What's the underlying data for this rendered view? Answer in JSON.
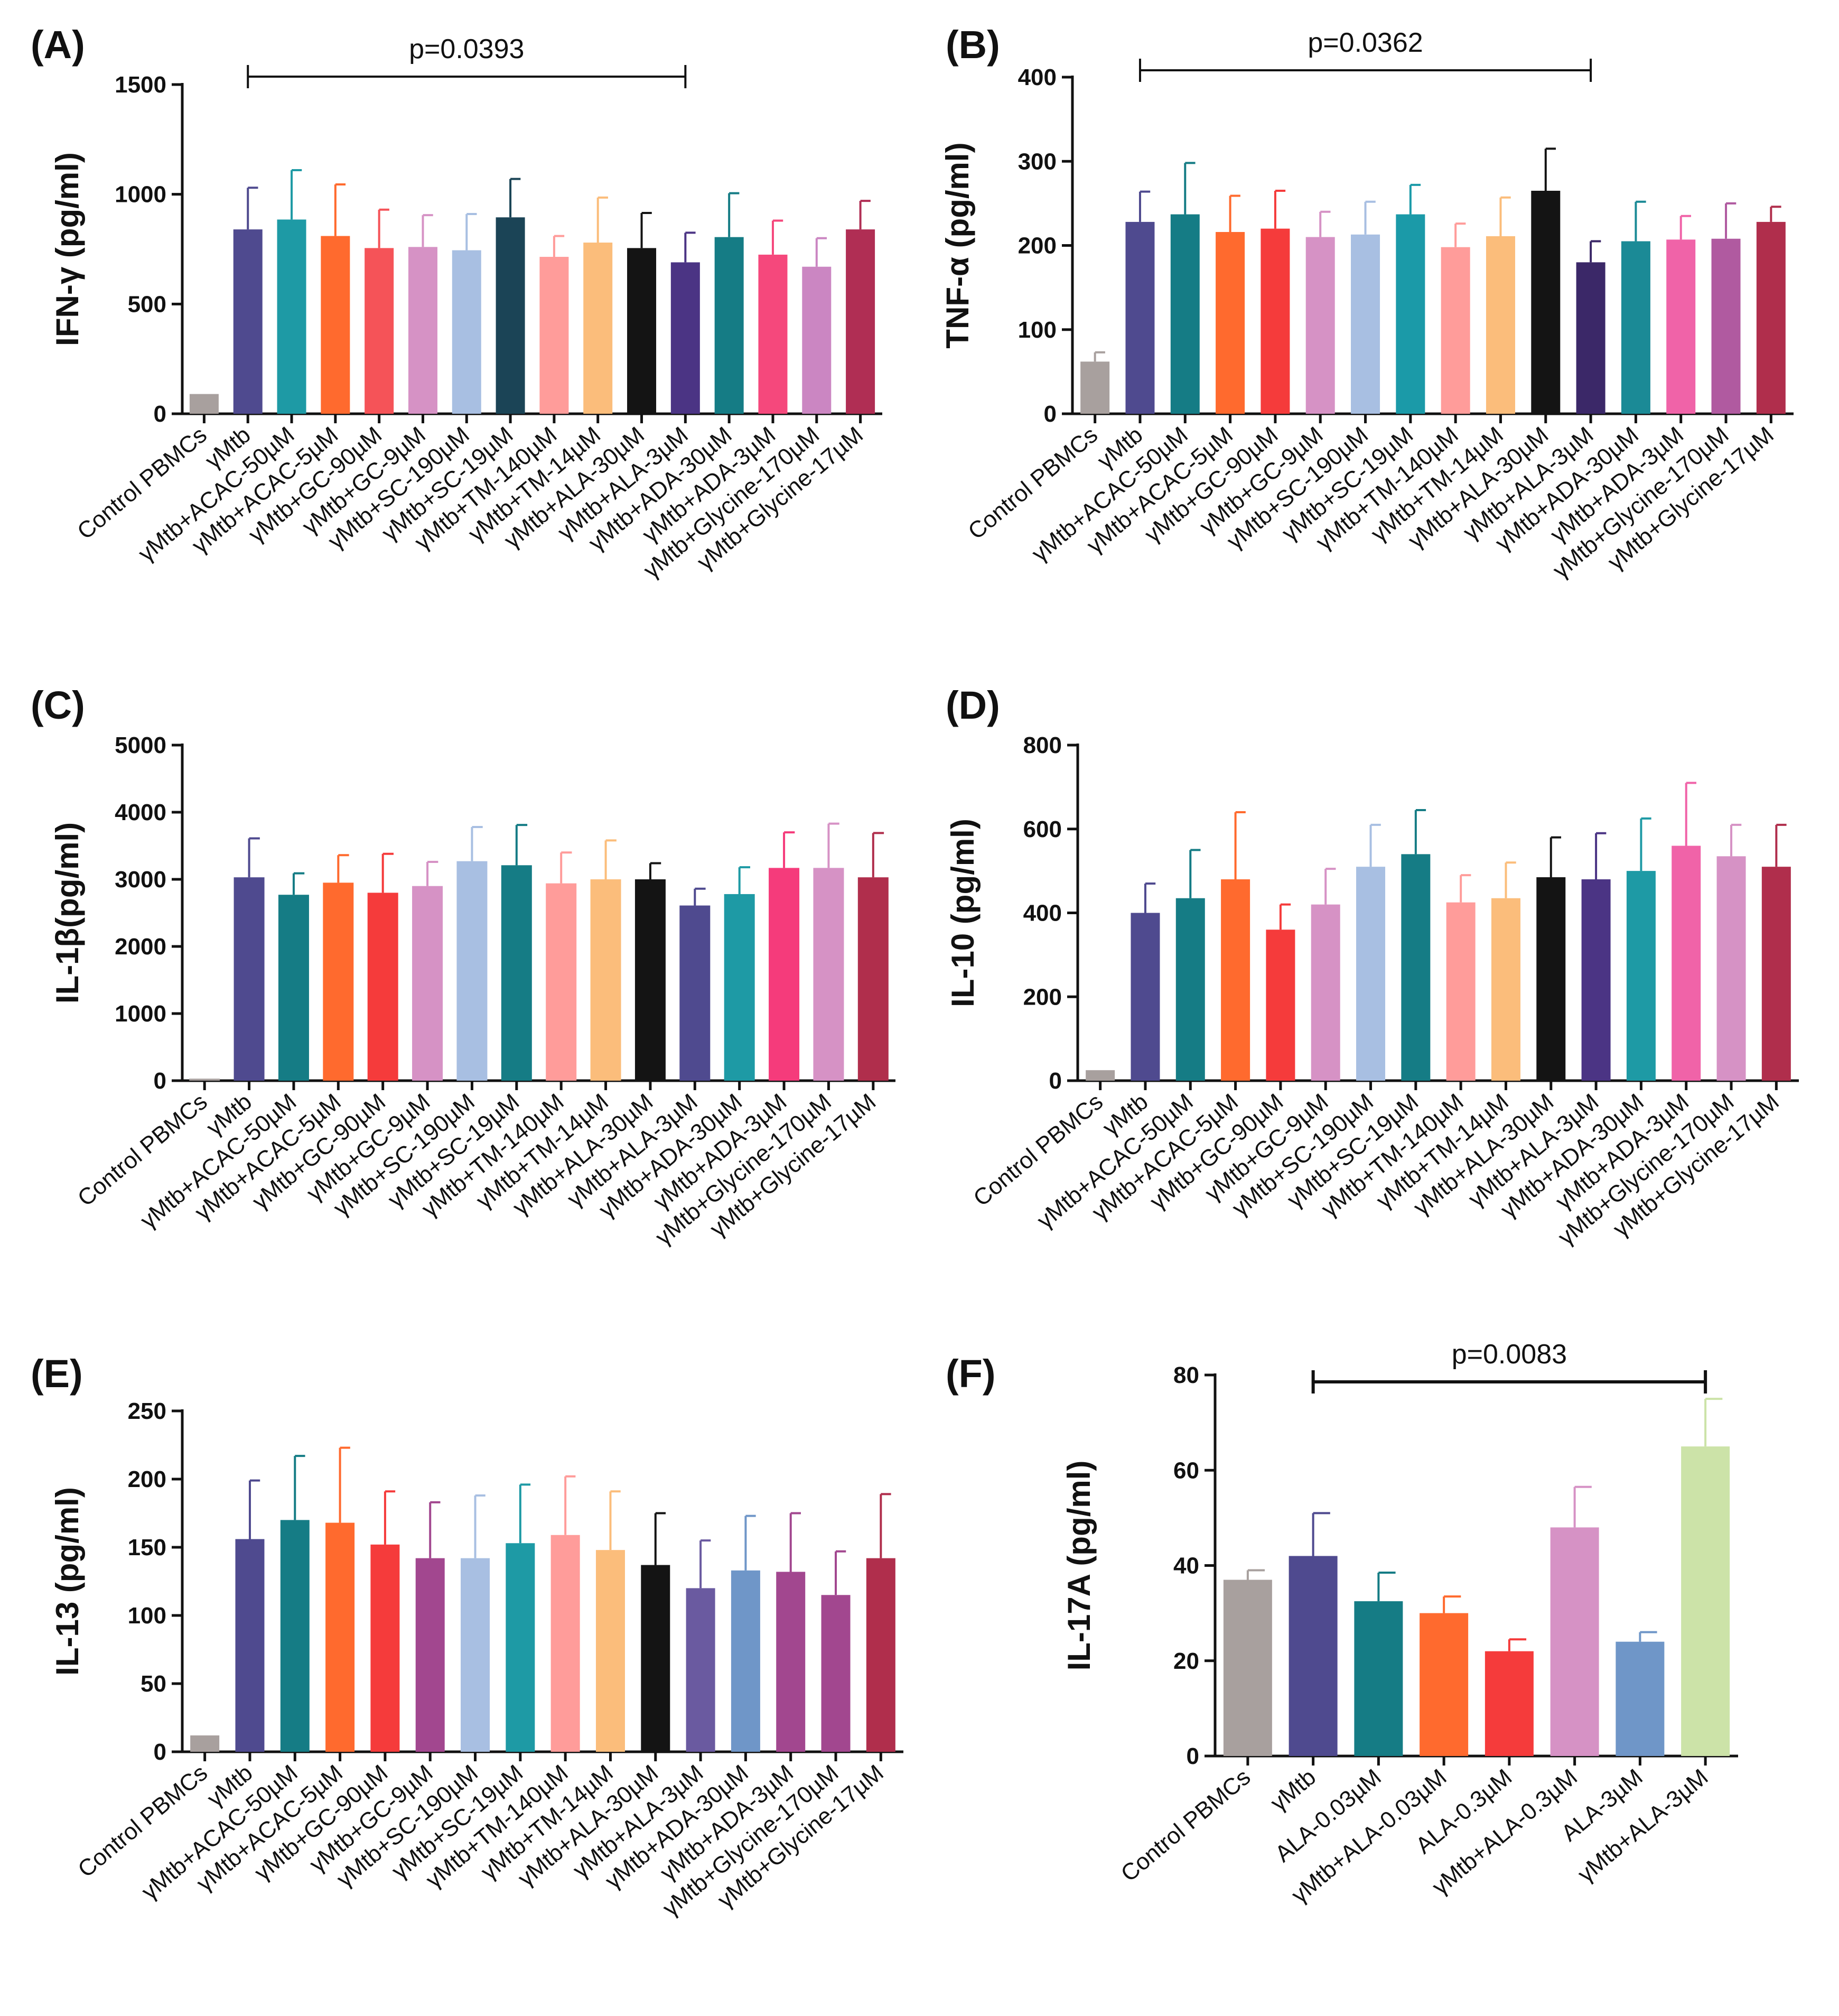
{
  "chart_data": [
    {
      "id": "A",
      "type": "bar",
      "panel_label": "(A)",
      "ylabel": "IFN-γ (pg/ml)",
      "ylim": [
        0,
        1500
      ],
      "yticks": [
        0,
        500,
        1000,
        1500
      ],
      "categories": [
        "Control PBMCs",
        "γMtb",
        "γMtb+ACAC-50µM",
        "γMtb+ACAC-5µM",
        "γMtb+GC-90µM",
        "γMtb+GC-9µM",
        "γMtb+SC-190µM",
        "γMtb+SC-19µM",
        "γMtb+TM-140µM",
        "γMtb+TM-14µM",
        "γMtb+ALA-30µM",
        "γMtb+ALA-3µM",
        "γMtb+ADA-30µM",
        "γMtb+ADA-3µM",
        "γMtb+Glycine-170µM",
        "γMtb+Glycine-17µM"
      ],
      "values": [
        90,
        840,
        885,
        810,
        755,
        760,
        745,
        895,
        715,
        780,
        755,
        690,
        805,
        725,
        670,
        840
      ],
      "errors": [
        0,
        190,
        225,
        235,
        175,
        145,
        165,
        175,
        95,
        205,
        160,
        135,
        200,
        155,
        130,
        130
      ],
      "colors": [
        "#a8a09e",
        "#4f4a8f",
        "#1e9aa5",
        "#ff6a2e",
        "#f55358",
        "#d692c5",
        "#a8bfe2",
        "#1b4456",
        "#ff9c9a",
        "#fbbd7b",
        "#141414",
        "#4b3484",
        "#157c85",
        "#f5487c",
        "#cb86c2",
        "#b02e54"
      ],
      "significance": {
        "from": "γMtb",
        "to": "γMtb+ALA-3µM",
        "label": "p=0.0393"
      }
    },
    {
      "id": "B",
      "type": "bar",
      "panel_label": "(B)",
      "ylabel": "TNF-α (pg/ml)",
      "ylim": [
        0,
        400
      ],
      "yticks": [
        0,
        100,
        200,
        300,
        400
      ],
      "categories": [
        "Control PBMCs",
        "γMtb",
        "γMtb+ACAC-50µM",
        "γMtb+ACAC-5µM",
        "γMtb+GC-90µM",
        "γMtb+GC-9µM",
        "γMtb+SC-190µM",
        "γMtb+SC-19µM",
        "γMtb+TM-140µM",
        "γMtb+TM-14µM",
        "γMtb+ALA-30µM",
        "γMtb+ALA-3µM",
        "γMtb+ADA-30µM",
        "γMtb+ADA-3µM",
        "γMtb+Glycine-170µM",
        "γMtb+Glycine-17µM"
      ],
      "values": [
        62,
        228,
        237,
        216,
        220,
        210,
        213,
        237,
        198,
        211,
        265,
        180,
        205,
        207,
        208,
        228
      ],
      "errors": [
        11,
        36,
        61,
        43,
        45,
        30,
        39,
        35,
        28,
        46,
        50,
        25,
        47,
        28,
        42,
        18
      ],
      "colors": [
        "#a8a09e",
        "#4f4a8f",
        "#157c85",
        "#ff6a2e",
        "#f53b3b",
        "#d692c5",
        "#a8bfe2",
        "#1b9aa8",
        "#ff9c9a",
        "#fbbd7b",
        "#141414",
        "#3b2868",
        "#1b8a96",
        "#f063a8",
        "#b05aa0",
        "#b02e4c"
      ],
      "significance": {
        "from": "γMtb",
        "to": "γMtb+ALA-3µM",
        "label": "p=0.0362"
      }
    },
    {
      "id": "C",
      "type": "bar",
      "panel_label": "(C)",
      "ylabel": "IL-1β(pg/ml)",
      "ylim": [
        0,
        5000
      ],
      "yticks": [
        0,
        1000,
        2000,
        3000,
        4000,
        5000
      ],
      "categories": [
        "Control PBMCs",
        "γMtb",
        "γMtb+ACAC-50µM",
        "γMtb+ACAC-5µM",
        "γMtb+GC-90µM",
        "γMtb+GC-9µM",
        "γMtb+SC-190µM",
        "γMtb+SC-19µM",
        "γMtb+TM-140µM",
        "γMtb+TM-14µM",
        "γMtb+ALA-30µM",
        "γMtb+ALA-3µM",
        "γMtb+ADA-30µM",
        "γMtb+ADA-3µM",
        "γMtb+Glycine-170µM",
        "γMtb+Glycine-17µM"
      ],
      "values": [
        30,
        3030,
        2770,
        2950,
        2800,
        2900,
        3270,
        3210,
        2940,
        3000,
        3000,
        2610,
        2780,
        3170,
        3170,
        3030
      ],
      "errors": [
        0,
        580,
        320,
        410,
        580,
        360,
        510,
        600,
        460,
        580,
        240,
        250,
        400,
        530,
        660,
        660
      ],
      "colors": [
        "#a8a09e",
        "#4f4a8f",
        "#157c85",
        "#ff6a2e",
        "#f53b3b",
        "#d692c5",
        "#a8bfe2",
        "#157c85",
        "#ff9c9a",
        "#fbbd7b",
        "#141414",
        "#4f4a8f",
        "#1e9aa5",
        "#f53b7b",
        "#d692c5",
        "#b02e4c"
      ]
    },
    {
      "id": "D",
      "type": "bar",
      "panel_label": "(D)",
      "ylabel": "IL-10 (pg/ml)",
      "ylim": [
        0,
        800
      ],
      "yticks": [
        0,
        200,
        400,
        600,
        800
      ],
      "categories": [
        "Control PBMCs",
        "γMtb",
        "γMtb+ACAC-50µM",
        "γMtb+ACAC-5µM",
        "γMtb+GC-90µM",
        "γMtb+GC-9µM",
        "γMtb+SC-190µM",
        "γMtb+SC-19µM",
        "γMtb+TM-140µM",
        "γMtb+TM-14µM",
        "γMtb+ALA-30µM",
        "γMtb+ALA-3µM",
        "γMtb+ADA-30µM",
        "γMtb+ADA-3µM",
        "γMtb+Glycine-170µM",
        "γMtb+Glycine-17µM"
      ],
      "values": [
        25,
        400,
        435,
        480,
        360,
        420,
        510,
        540,
        425,
        435,
        485,
        480,
        500,
        560,
        535,
        510
      ],
      "errors": [
        0,
        70,
        115,
        160,
        60,
        85,
        100,
        105,
        65,
        85,
        95,
        110,
        125,
        150,
        75,
        100
      ],
      "colors": [
        "#a8a09e",
        "#4f4a8f",
        "#157c85",
        "#ff6a2e",
        "#f53b3b",
        "#d692c5",
        "#a8bfe2",
        "#157c85",
        "#ff9c9a",
        "#fbbd7b",
        "#141414",
        "#4b3484",
        "#1e9aa5",
        "#f063a8",
        "#d692c5",
        "#b02e4c"
      ]
    },
    {
      "id": "E",
      "type": "bar",
      "panel_label": "(E)",
      "ylabel": "IL-13 (pg/ml)",
      "ylim": [
        0,
        250
      ],
      "yticks": [
        0,
        50,
        100,
        150,
        200,
        250
      ],
      "categories": [
        "Control PBMCs",
        "γMtb",
        "γMtb+ACAC-50µM",
        "γMtb+ACAC-5µM",
        "γMtb+GC-90µM",
        "γMtb+GC-9µM",
        "γMtb+SC-190µM",
        "γMtb+SC-19µM",
        "γMtb+TM-140µM",
        "γMtb+TM-14µM",
        "γMtb+ALA-30µM",
        "γMtb+ALA-3µM",
        "γMtb+ADA-30µM",
        "γMtb+ADA-3µM",
        "γMtb+Glycine-170µM",
        "γMtb+Glycine-17µM"
      ],
      "values": [
        12,
        156,
        170,
        168,
        152,
        142,
        142,
        153,
        159,
        148,
        137,
        120,
        133,
        132,
        115,
        142
      ],
      "errors": [
        0,
        43,
        47,
        55,
        39,
        41,
        46,
        43,
        43,
        43,
        38,
        35,
        40,
        43,
        32,
        47
      ],
      "colors": [
        "#a8a09e",
        "#4f4a8f",
        "#157c85",
        "#ff6a2e",
        "#f53b3b",
        "#a2478f",
        "#a8bfe2",
        "#1e9aa5",
        "#ff9c9a",
        "#fbbd7b",
        "#141414",
        "#6a5aa0",
        "#6f96c8",
        "#a2478f",
        "#a2478f",
        "#b02e4c"
      ]
    },
    {
      "id": "F",
      "type": "bar",
      "panel_label": "(F)",
      "ylabel": "IL-17A (pg/ml)",
      "ylim": [
        0,
        80
      ],
      "yticks": [
        0,
        20,
        40,
        60,
        80
      ],
      "categories": [
        "Control PBMCs",
        "γMtb",
        "ALA-0.03µM",
        "γMtb+ALA-0.03µM",
        "ALA-0.3µM",
        "γMtb+ALA-0.3µM",
        "ALA-3µM",
        "γMtb+ALA-3µM"
      ],
      "values": [
        37,
        42,
        32.5,
        30,
        22,
        48,
        24,
        65
      ],
      "errors": [
        2,
        9,
        6,
        3.5,
        2.5,
        8.5,
        2,
        10
      ],
      "colors": [
        "#a8a09e",
        "#4f4a8f",
        "#157c85",
        "#ff6a2e",
        "#f53b3b",
        "#d692c5",
        "#6f96c8",
        "#cce3a8"
      ],
      "significance": {
        "from": "γMtb",
        "to": "γMtb+ALA-3µM",
        "label": "p=0.0083"
      }
    }
  ]
}
